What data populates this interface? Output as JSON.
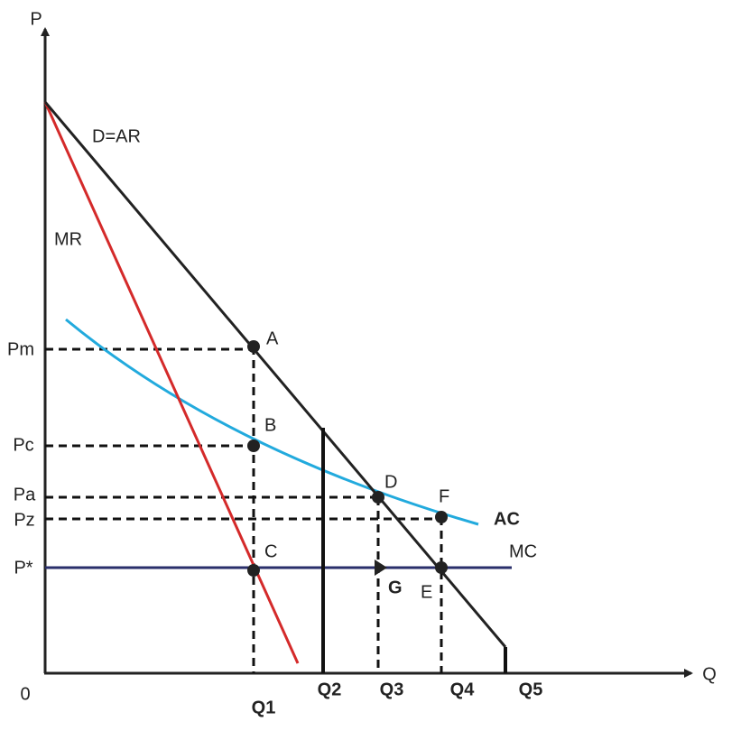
{
  "axes": {
    "y_label": "P",
    "x_label": "Q",
    "origin": "0"
  },
  "price_labels": [
    "Pm",
    "Pc",
    "Pa",
    "Pz",
    "P*"
  ],
  "quantity_labels": [
    "Q1",
    "Q2",
    "Q3",
    "Q4",
    "Q5"
  ],
  "curves": {
    "demand": "D=AR",
    "marginal_revenue": "MR",
    "average_cost": "AC",
    "marginal_cost": "MC"
  },
  "points": [
    "A",
    "B",
    "C",
    "D",
    "E",
    "F",
    "G"
  ]
}
